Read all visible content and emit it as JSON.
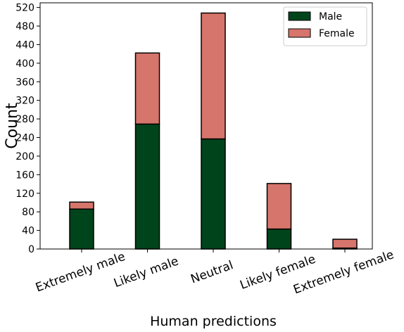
{
  "chart_data": {
    "type": "bar",
    "stacked": true,
    "categories": [
      "Extremely male",
      "Likely male",
      "Neutral",
      "Likely female",
      "Extremely female"
    ],
    "series": [
      {
        "name": "Male",
        "color": "#00441b",
        "values": [
          86,
          269,
          237,
          43,
          2
        ]
      },
      {
        "name": "Female",
        "color": "#d6756b",
        "values": [
          15,
          153,
          271,
          98,
          19
        ]
      }
    ],
    "xlabel": "Human predictions",
    "ylabel": "Count",
    "ylim": [
      0,
      530
    ],
    "yticks": [
      0,
      40,
      80,
      120,
      160,
      200,
      240,
      280,
      320,
      360,
      400,
      440,
      480,
      520
    ],
    "legend_position": "top-right",
    "grid": false
  }
}
